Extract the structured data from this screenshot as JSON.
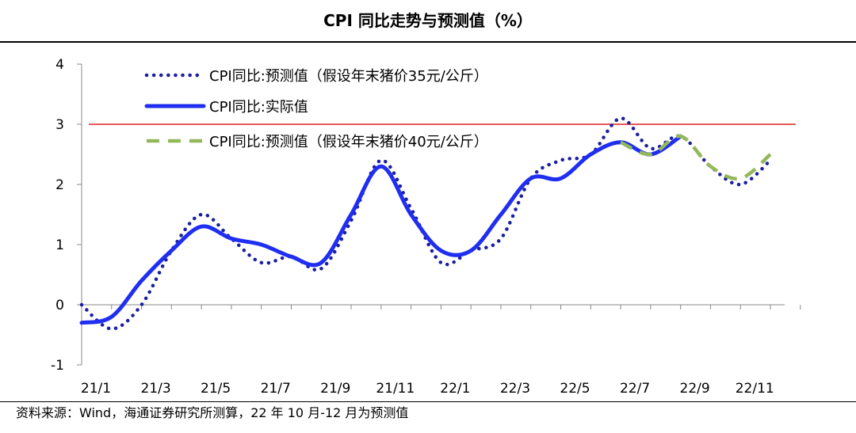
{
  "title": "CPI 同比走势与预测值（%）",
  "source": "资料来源：Wind，海通证券研究所测算，22 年 10 月-12 月为预测值",
  "chart_data": {
    "type": "line",
    "x": [
      "21/1",
      "21/2",
      "21/3",
      "21/4",
      "21/5",
      "21/6",
      "21/7",
      "21/8",
      "21/9",
      "21/10",
      "21/11",
      "21/12",
      "22/1",
      "22/2",
      "22/3",
      "22/4",
      "22/5",
      "22/6",
      "22/7",
      "22/8",
      "22/9",
      "22/10",
      "22/11",
      "22/12"
    ],
    "x_tick_labels": [
      "21/1",
      "21/3",
      "21/5",
      "21/7",
      "21/9",
      "21/11",
      "22/1",
      "22/3",
      "22/5",
      "22/7",
      "22/9",
      "22/11"
    ],
    "ylim": [
      -1,
      4
    ],
    "y_ticks": [
      "4",
      "3",
      "2",
      "1",
      "0",
      "-1"
    ],
    "y_tick_values": [
      4,
      3,
      2,
      1,
      0,
      -1
    ],
    "reference_line": {
      "value": 3,
      "color": "#e02020"
    },
    "legend_position": "top-left",
    "series": [
      {
        "name": "CPI同比:预测值（假设年末猪价35元/公斤）",
        "style": "dotted",
        "color": "#1a1fa0",
        "values": [
          0.0,
          -0.4,
          0.0,
          0.9,
          1.5,
          1.1,
          0.7,
          0.8,
          0.6,
          1.4,
          2.4,
          1.6,
          0.7,
          0.9,
          1.1,
          2.1,
          2.4,
          2.5,
          3.1,
          2.6,
          2.8,
          2.3,
          2.0,
          2.4
        ]
      },
      {
        "name": "CPI同比:实际值",
        "style": "solid",
        "color": "#1f2ef0",
        "values": [
          -0.3,
          -0.2,
          0.4,
          0.9,
          1.3,
          1.1,
          1.0,
          0.8,
          0.7,
          1.5,
          2.3,
          1.5,
          0.9,
          0.9,
          1.5,
          2.1,
          2.1,
          2.5,
          2.7,
          2.5,
          2.8,
          null,
          null,
          null
        ]
      },
      {
        "name": "CPI同比:预测值（假设年末猪价40元/公斤）",
        "style": "dashed",
        "color": "#93b85c",
        "values": [
          null,
          null,
          null,
          null,
          null,
          null,
          null,
          null,
          null,
          null,
          null,
          null,
          null,
          null,
          null,
          null,
          null,
          null,
          2.7,
          2.5,
          2.8,
          2.3,
          2.1,
          2.5
        ]
      }
    ]
  }
}
